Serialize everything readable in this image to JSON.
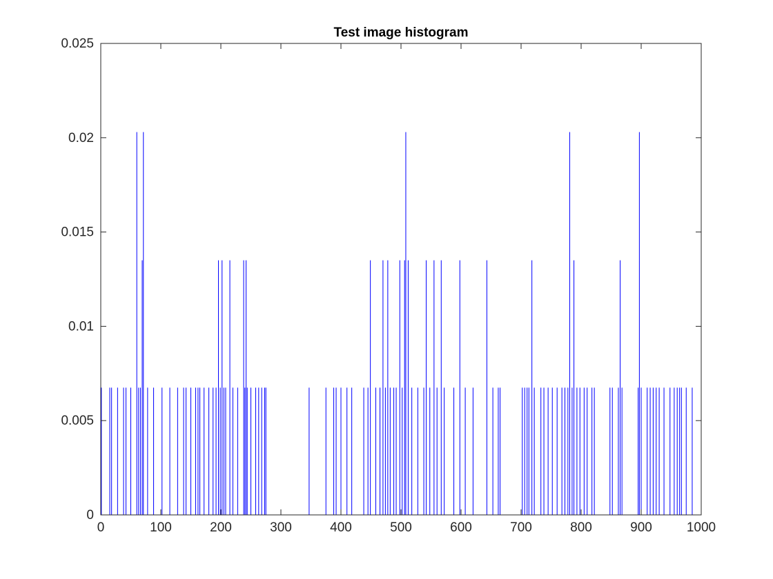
{
  "chart_data": {
    "type": "line",
    "title": "Test image histogram",
    "xlabel": "",
    "ylabel": "",
    "xlim": [
      0,
      1000
    ],
    "ylim": [
      0,
      0.025
    ],
    "xticks": [
      0,
      100,
      200,
      300,
      400,
      500,
      600,
      700,
      800,
      900,
      1000
    ],
    "xtick_labels": [
      "0",
      "100",
      "200",
      "300",
      "400",
      "500",
      "600",
      "700",
      "800",
      "900",
      "1000"
    ],
    "yticks": [
      0,
      0.005,
      0.01,
      0.015,
      0.02,
      0.025
    ],
    "ytick_labels": [
      "0",
      "0.005",
      "0.01",
      "0.015",
      "0.02",
      "0.025"
    ],
    "grid": false,
    "line_color": "#0000ff",
    "series": [
      {
        "spikes": [
          [
            1,
            0.00675
          ],
          [
            15,
            0.00675
          ],
          [
            18,
            0.00675
          ],
          [
            28,
            0.00675
          ],
          [
            38,
            0.00675
          ],
          [
            42,
            0.00675
          ],
          [
            50,
            0.00675
          ],
          [
            60,
            0.0203
          ],
          [
            63,
            0.00675
          ],
          [
            66,
            0.00675
          ],
          [
            69,
            0.0135
          ],
          [
            71,
            0.0203
          ],
          [
            78,
            0.00675
          ],
          [
            88,
            0.00675
          ],
          [
            102,
            0.00675
          ],
          [
            115,
            0.00675
          ],
          [
            128,
            0.00675
          ],
          [
            138,
            0.00675
          ],
          [
            142,
            0.00675
          ],
          [
            150,
            0.00675
          ],
          [
            158,
            0.00675
          ],
          [
            162,
            0.00675
          ],
          [
            165,
            0.00675
          ],
          [
            172,
            0.00675
          ],
          [
            180,
            0.00675
          ],
          [
            187,
            0.00675
          ],
          [
            192,
            0.00675
          ],
          [
            196,
            0.0135
          ],
          [
            199,
            0.00675
          ],
          [
            202,
            0.0135
          ],
          [
            205,
            0.00675
          ],
          [
            208,
            0.00675
          ],
          [
            215,
            0.0135
          ],
          [
            220,
            0.00675
          ],
          [
            228,
            0.00675
          ],
          [
            238,
            0.0135
          ],
          [
            240,
            0.00675
          ],
          [
            242,
            0.0135
          ],
          [
            244,
            0.00675
          ],
          [
            250,
            0.00675
          ],
          [
            258,
            0.00675
          ],
          [
            263,
            0.00675
          ],
          [
            268,
            0.00675
          ],
          [
            273,
            0.00675
          ],
          [
            275,
            0.00675
          ],
          [
            347,
            0.00675
          ],
          [
            375,
            0.00675
          ],
          [
            388,
            0.00675
          ],
          [
            392,
            0.00675
          ],
          [
            400,
            0.00675
          ],
          [
            410,
            0.00675
          ],
          [
            418,
            0.00675
          ],
          [
            438,
            0.00675
          ],
          [
            445,
            0.00675
          ],
          [
            449,
            0.0135
          ],
          [
            458,
            0.00675
          ],
          [
            465,
            0.00675
          ],
          [
            470,
            0.0135
          ],
          [
            474,
            0.00675
          ],
          [
            478,
            0.0135
          ],
          [
            482,
            0.00675
          ],
          [
            488,
            0.00675
          ],
          [
            492,
            0.00675
          ],
          [
            498,
            0.0135
          ],
          [
            502,
            0.00675
          ],
          [
            506,
            0.0135
          ],
          [
            508,
            0.0203
          ],
          [
            512,
            0.0135
          ],
          [
            518,
            0.00675
          ],
          [
            528,
            0.00675
          ],
          [
            538,
            0.00675
          ],
          [
            542,
            0.0135
          ],
          [
            548,
            0.00675
          ],
          [
            555,
            0.0135
          ],
          [
            560,
            0.00675
          ],
          [
            567,
            0.0135
          ],
          [
            572,
            0.00675
          ],
          [
            588,
            0.00675
          ],
          [
            598,
            0.0135
          ],
          [
            607,
            0.00675
          ],
          [
            620,
            0.00675
          ],
          [
            643,
            0.0135
          ],
          [
            653,
            0.00675
          ],
          [
            662,
            0.00675
          ],
          [
            665,
            0.00675
          ],
          [
            702,
            0.00675
          ],
          [
            706,
            0.00675
          ],
          [
            710,
            0.00675
          ],
          [
            713,
            0.00675
          ],
          [
            718,
            0.0135
          ],
          [
            722,
            0.00675
          ],
          [
            733,
            0.00675
          ],
          [
            738,
            0.00675
          ],
          [
            745,
            0.00675
          ],
          [
            752,
            0.00675
          ],
          [
            760,
            0.00675
          ],
          [
            768,
            0.00675
          ],
          [
            773,
            0.00675
          ],
          [
            778,
            0.00675
          ],
          [
            781,
            0.0203
          ],
          [
            785,
            0.00675
          ],
          [
            788,
            0.0135
          ],
          [
            793,
            0.00675
          ],
          [
            798,
            0.00675
          ],
          [
            805,
            0.00675
          ],
          [
            810,
            0.00675
          ],
          [
            818,
            0.00675
          ],
          [
            822,
            0.00675
          ],
          [
            848,
            0.00675
          ],
          [
            852,
            0.00675
          ],
          [
            862,
            0.00675
          ],
          [
            865,
            0.0135
          ],
          [
            868,
            0.00675
          ],
          [
            895,
            0.00675
          ],
          [
            897,
            0.0203
          ],
          [
            900,
            0.00675
          ],
          [
            910,
            0.00675
          ],
          [
            915,
            0.00675
          ],
          [
            920,
            0.00675
          ],
          [
            925,
            0.00675
          ],
          [
            930,
            0.00675
          ],
          [
            938,
            0.00675
          ],
          [
            948,
            0.00675
          ],
          [
            955,
            0.00675
          ],
          [
            960,
            0.00675
          ],
          [
            964,
            0.00675
          ],
          [
            967,
            0.00675
          ],
          [
            975,
            0.00675
          ],
          [
            985,
            0.00675
          ]
        ]
      }
    ]
  }
}
